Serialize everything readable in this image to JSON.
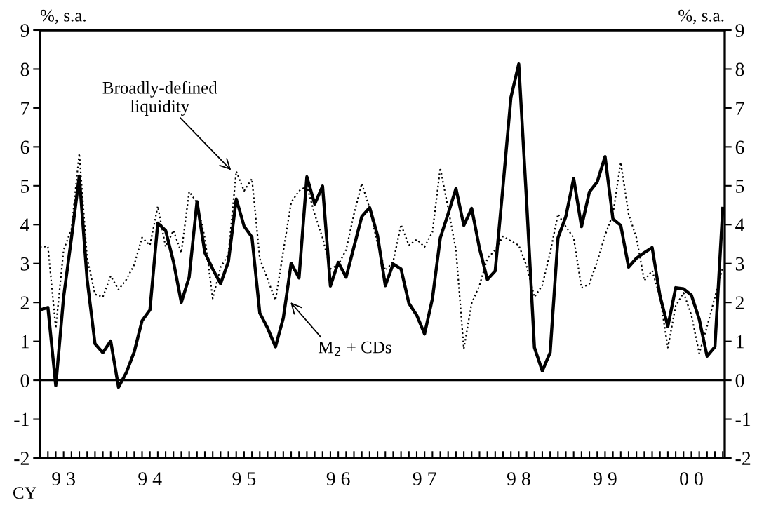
{
  "chart_data": {
    "type": "line",
    "ylabel": "%, s.a.",
    "y2label": "%, s.a.",
    "categories": [
      null,
      null,
      null,
      "9 3",
      null,
      null,
      null,
      null,
      null,
      null,
      null,
      null,
      null,
      null,
      "9 4",
      null,
      null,
      null,
      null,
      null,
      null,
      null,
      null,
      null,
      null,
      null,
      "9 5",
      null,
      null,
      null,
      null,
      null,
      null,
      null,
      null,
      null,
      null,
      null,
      "9 6",
      null,
      null,
      null,
      null,
      null,
      null,
      null,
      null,
      null,
      null,
      "9 7",
      null,
      null,
      null,
      null,
      null,
      null,
      null,
      null,
      null,
      null,
      null,
      "9 8",
      null,
      null,
      null,
      null,
      null,
      null,
      null,
      null,
      null,
      null,
      "9 9",
      null,
      null,
      null,
      null,
      null,
      null,
      null,
      null,
      null,
      null,
      "0 0",
      null,
      null,
      null,
      null
    ],
    "series": [
      {
        "color": "#000000",
        "line_style": "dotted",
        "values": [
          3.43,
          3.44,
          1.34,
          3.35,
          3.89,
          5.83,
          3.13,
          2.21,
          2.14,
          2.68,
          2.33,
          2.59,
          2.97,
          3.67,
          3.47,
          4.47,
          3.43,
          3.85,
          3.28,
          4.85,
          4.57,
          3.66,
          2.1,
          2.9,
          3.24,
          5.37,
          4.87,
          5.18,
          3.13,
          2.59,
          2.06,
          3.32,
          4.57,
          4.87,
          4.99,
          4.27,
          3.66,
          2.86,
          2.97,
          3.35,
          4.27,
          5.06,
          4.42,
          3.51,
          2.82,
          3.05,
          4.0,
          3.47,
          3.62,
          3.43,
          3.81,
          5.46,
          4.42,
          3.35,
          0.81,
          1.98,
          2.44,
          3.13,
          3.35,
          3.7,
          3.58,
          3.47,
          2.94,
          2.14,
          2.44,
          3.28,
          4.27,
          3.95,
          3.66,
          2.37,
          2.48,
          3.05,
          3.73,
          4.27,
          5.6,
          4.27,
          3.66,
          2.56,
          2.82,
          2.14,
          0.84,
          1.91,
          2.25,
          1.68,
          0.69,
          1.38,
          2.14,
          2.9
        ]
      },
      {
        "color": "#000000",
        "line_style": "solid",
        "values": [
          1.81,
          1.87,
          -0.14,
          2.14,
          3.66,
          5.25,
          2.59,
          0.94,
          0.71,
          1.01,
          -0.18,
          0.2,
          0.73,
          1.53,
          1.81,
          4.04,
          3.85,
          3.05,
          2.0,
          2.65,
          4.59,
          3.28,
          2.86,
          2.48,
          3.05,
          4.66,
          3.96,
          3.68,
          1.73,
          1.34,
          0.86,
          1.6,
          3.01,
          2.63,
          5.23,
          4.53,
          4.99,
          2.42,
          3.03,
          2.65,
          3.43,
          4.21,
          4.44,
          3.73,
          2.43,
          2.99,
          2.86,
          1.98,
          1.67,
          1.19,
          2.1,
          3.66,
          4.28,
          4.93,
          3.98,
          4.42,
          3.39,
          2.59,
          2.81,
          5.0,
          7.27,
          8.13,
          4.6,
          0.84,
          0.24,
          0.71,
          3.66,
          4.21,
          5.19,
          3.95,
          4.84,
          5.1,
          5.75,
          4.15,
          3.98,
          2.91,
          3.14,
          3.28,
          3.41,
          2.17,
          1.38,
          2.38,
          2.35,
          2.19,
          1.57,
          0.62,
          0.86,
          4.42
        ]
      }
    ],
    "ylim": [
      -2,
      9
    ],
    "yticks": [
      -2,
      -1,
      0,
      1,
      2,
      3,
      4,
      5,
      6,
      7,
      8,
      9
    ],
    "y2lim": [
      -2,
      9
    ],
    "y2ticks": [
      -2,
      -1,
      0,
      1,
      2,
      3,
      4,
      5,
      6,
      7,
      8,
      9
    ],
    "ref_lines": [
      {
        "axis": "y",
        "value": 0,
        "color": "#000000",
        "line_style": "solid"
      }
    ],
    "annotations": [
      "Broadly-defined\nliquidity",
      "M$_{2}$ + CDs",
      "CY"
    ],
    "grid": false,
    "legend": false
  }
}
